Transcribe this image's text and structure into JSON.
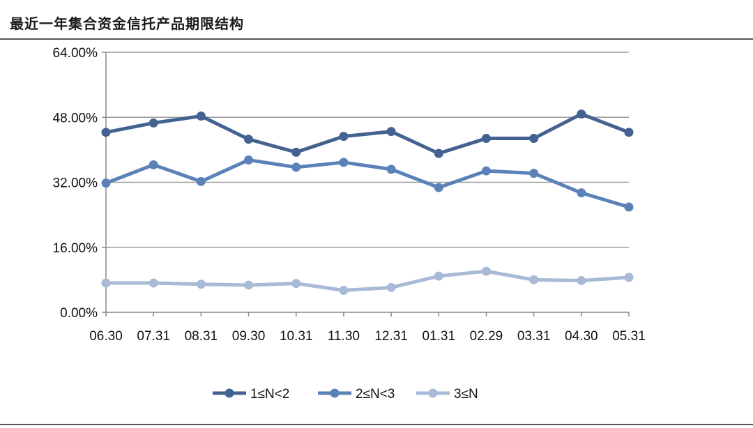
{
  "title": "最近一年集合资金信托产品期限结构",
  "chart_data": {
    "type": "line",
    "categories": [
      "06.30",
      "07.31",
      "08.31",
      "09.30",
      "10.31",
      "11.30",
      "12.31",
      "01.31",
      "02.29",
      "03.31",
      "04.30",
      "05.31"
    ],
    "ylim": [
      0,
      64
    ],
    "yticks": [
      0,
      16,
      32,
      48,
      64
    ],
    "ytick_labels": [
      "0.00%",
      "16.00%",
      "32.00%",
      "48.00%",
      "64.00%"
    ],
    "grid": true,
    "legend_position": "bottom",
    "series": [
      {
        "name": "1≤N<2",
        "color": "#44628f",
        "values": [
          44.3,
          46.6,
          48.3,
          42.6,
          39.4,
          43.3,
          44.5,
          39.1,
          42.8,
          42.8,
          48.8,
          44.3
        ]
      },
      {
        "name": "2≤N<3",
        "color": "#5b82b8",
        "values": [
          31.8,
          36.3,
          32.2,
          37.5,
          35.7,
          36.9,
          35.2,
          30.7,
          34.8,
          34.2,
          29.4,
          25.9
        ]
      },
      {
        "name": "3≤N",
        "color": "#a8bad6",
        "values": [
          7.2,
          7.2,
          6.9,
          6.7,
          7.1,
          5.4,
          6.1,
          8.9,
          10.1,
          8.0,
          7.8,
          8.6
        ]
      }
    ]
  }
}
